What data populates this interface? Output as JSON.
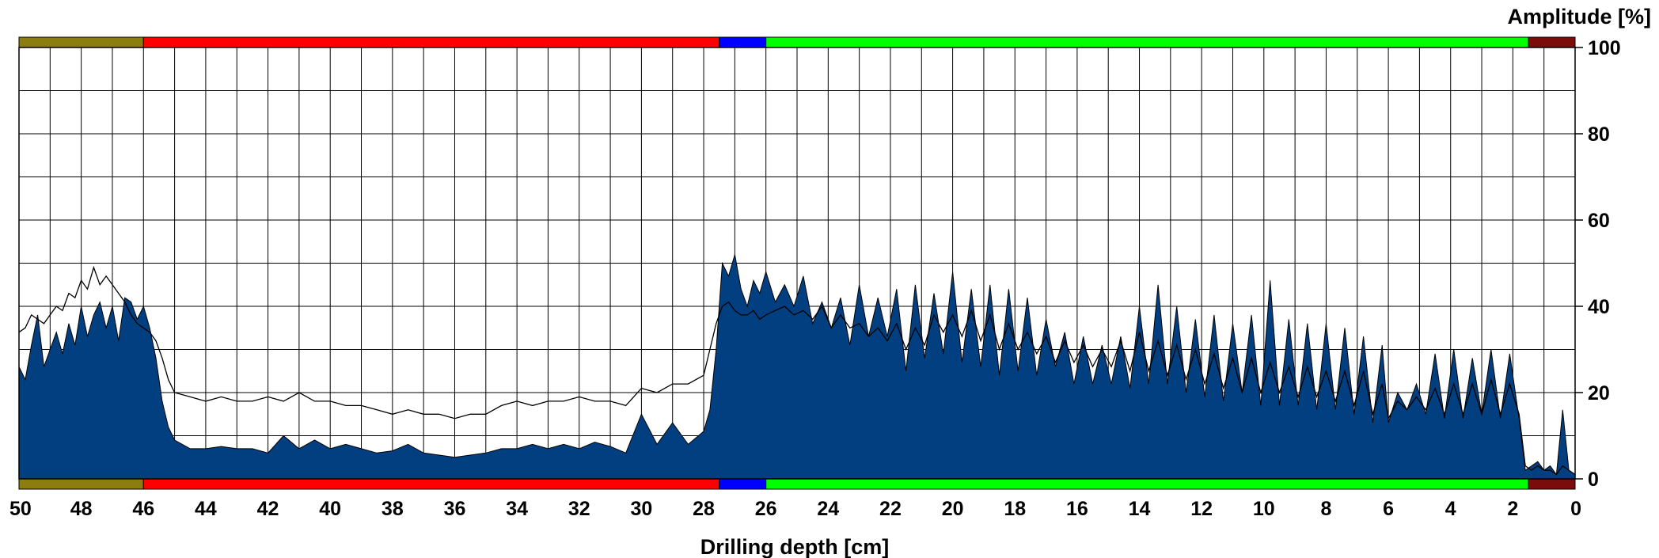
{
  "chart_data": {
    "type": "area",
    "xlabel": "Drilling depth [cm]",
    "ylabel": "Amplitude [%]",
    "xlim": [
      50,
      0
    ],
    "ylim": [
      0,
      100
    ],
    "x_axis_reversed": true,
    "grid": true,
    "x_ticks": [
      50,
      48,
      46,
      44,
      42,
      40,
      38,
      36,
      34,
      32,
      30,
      28,
      26,
      24,
      22,
      20,
      18,
      16,
      14,
      12,
      10,
      8,
      6,
      4,
      2,
      0
    ],
    "y_ticks": [
      0,
      20,
      40,
      60,
      80,
      100
    ],
    "colors": {
      "fill": "#023f80",
      "line": "#000000",
      "grid": "#000000"
    },
    "segments": [
      {
        "from": 50,
        "to": 46,
        "color": "#8b7d0e"
      },
      {
        "from": 46,
        "to": 27.5,
        "color": "#ff0000"
      },
      {
        "from": 27.5,
        "to": 26,
        "color": "#0000ff"
      },
      {
        "from": 26,
        "to": 1.5,
        "color": "#00ff00"
      },
      {
        "from": 1.5,
        "to": 0,
        "color": "#7a0c0c"
      }
    ],
    "series": [
      {
        "type": "area",
        "x": [
          50,
          49.8,
          49.6,
          49.4,
          49.2,
          49.0,
          48.8,
          48.6,
          48.4,
          48.2,
          48.0,
          47.8,
          47.6,
          47.4,
          47.2,
          47.0,
          46.8,
          46.6,
          46.4,
          46.2,
          46.0,
          45.8,
          45.6,
          45.4,
          45.2,
          45.0,
          44.5,
          44.0,
          43.5,
          43.0,
          42.5,
          42.0,
          41.5,
          41.0,
          40.5,
          40.0,
          39.5,
          39.0,
          38.5,
          38.0,
          37.5,
          37.0,
          36.5,
          36.0,
          35.5,
          35.0,
          34.5,
          34.0,
          33.5,
          33.0,
          32.5,
          32.0,
          31.5,
          31.0,
          30.5,
          30.0,
          29.5,
          29.0,
          28.5,
          28.0,
          27.8,
          27.6,
          27.4,
          27.2,
          27.0,
          26.8,
          26.6,
          26.4,
          26.2,
          26.0,
          25.7,
          25.4,
          25.1,
          24.8,
          24.5,
          24.2,
          23.9,
          23.6,
          23.3,
          23.0,
          22.7,
          22.4,
          22.1,
          21.8,
          21.5,
          21.2,
          20.9,
          20.6,
          20.3,
          20.0,
          19.7,
          19.4,
          19.1,
          18.8,
          18.5,
          18.2,
          17.9,
          17.6,
          17.3,
          17.0,
          16.7,
          16.4,
          16.1,
          15.8,
          15.5,
          15.2,
          14.9,
          14.6,
          14.3,
          14.0,
          13.7,
          13.4,
          13.1,
          12.8,
          12.5,
          12.2,
          11.9,
          11.6,
          11.3,
          11.0,
          10.7,
          10.4,
          10.1,
          9.8,
          9.5,
          9.2,
          8.9,
          8.6,
          8.3,
          8.0,
          7.7,
          7.4,
          7.1,
          6.8,
          6.5,
          6.2,
          6.0,
          5.7,
          5.4,
          5.1,
          4.8,
          4.5,
          4.2,
          3.9,
          3.6,
          3.3,
          3.0,
          2.7,
          2.4,
          2.1,
          1.8,
          1.6,
          1.4,
          1.2,
          1.0,
          0.8,
          0.6,
          0.4,
          0.2,
          0.0
        ],
        "y": [
          26,
          23,
          31,
          38,
          26,
          30,
          34,
          29,
          36,
          31,
          40,
          33,
          38,
          41,
          35,
          40,
          32,
          42,
          41,
          37,
          40,
          35,
          28,
          18,
          12,
          9,
          7,
          7,
          7.5,
          7,
          7,
          6,
          10,
          7,
          9,
          7,
          8,
          7,
          6,
          6.5,
          8,
          6,
          5.5,
          5,
          5.5,
          6,
          7,
          7,
          8,
          7,
          8,
          7,
          8.5,
          7.5,
          6,
          15,
          8,
          13,
          8,
          11,
          16,
          30,
          50,
          47,
          52,
          44,
          40,
          46,
          43,
          48,
          41,
          45,
          40,
          47,
          36,
          41,
          35,
          42,
          31,
          45,
          33,
          42,
          33,
          44,
          25,
          45,
          28,
          43,
          29,
          48,
          27,
          44,
          26,
          45,
          24,
          44,
          25,
          42,
          24,
          37,
          26,
          34,
          22,
          33,
          22,
          31,
          22,
          33,
          21,
          40,
          22,
          45,
          22,
          40,
          20,
          37,
          19,
          38,
          18,
          36,
          20,
          38,
          17,
          46,
          17,
          37,
          17,
          36,
          16,
          36,
          16,
          35,
          15,
          33,
          13,
          31,
          13,
          20,
          16,
          22,
          15,
          29,
          14,
          30,
          14,
          28,
          15,
          30,
          14,
          29,
          14,
          2,
          3,
          4,
          2,
          3,
          1,
          16,
          2,
          1
        ]
      },
      {
        "type": "line",
        "x": [
          50,
          49.8,
          49.6,
          49.4,
          49.2,
          49.0,
          48.8,
          48.6,
          48.4,
          48.2,
          48.0,
          47.8,
          47.6,
          47.4,
          47.2,
          47.0,
          46.8,
          46.6,
          46.4,
          46.2,
          46.0,
          45.8,
          45.6,
          45.4,
          45.2,
          45.0,
          44.5,
          44.0,
          43.5,
          43.0,
          42.5,
          42.0,
          41.5,
          41.0,
          40.5,
          40.0,
          39.5,
          39.0,
          38.5,
          38.0,
          37.5,
          37.0,
          36.5,
          36.0,
          35.5,
          35.0,
          34.5,
          34.0,
          33.5,
          33.0,
          32.5,
          32.0,
          31.5,
          31.0,
          30.5,
          30.0,
          29.5,
          29.0,
          28.5,
          28.0,
          27.8,
          27.6,
          27.4,
          27.2,
          27.0,
          26.8,
          26.6,
          26.4,
          26.2,
          26.0,
          25.7,
          25.4,
          25.1,
          24.8,
          24.5,
          24.2,
          23.9,
          23.6,
          23.3,
          23.0,
          22.7,
          22.4,
          22.1,
          21.8,
          21.5,
          21.2,
          20.9,
          20.6,
          20.3,
          20.0,
          19.7,
          19.4,
          19.1,
          18.8,
          18.5,
          18.2,
          17.9,
          17.6,
          17.3,
          17.0,
          16.7,
          16.4,
          16.1,
          15.8,
          15.5,
          15.2,
          14.9,
          14.6,
          14.3,
          14.0,
          13.7,
          13.4,
          13.1,
          12.8,
          12.5,
          12.2,
          11.9,
          11.6,
          11.3,
          11.0,
          10.7,
          10.4,
          10.1,
          9.8,
          9.5,
          9.2,
          8.9,
          8.6,
          8.3,
          8.0,
          7.7,
          7.4,
          7.1,
          6.8,
          6.5,
          6.2,
          6.0,
          5.7,
          5.4,
          5.1,
          4.8,
          4.5,
          4.2,
          3.9,
          3.6,
          3.3,
          3.0,
          2.7,
          2.4,
          2.1,
          1.8,
          1.6,
          1.4,
          1.2,
          1.0,
          0.8,
          0.6,
          0.4,
          0.2,
          0.0
        ],
        "y": [
          34,
          35,
          38,
          37,
          36,
          38,
          40,
          39,
          43,
          42,
          46,
          44,
          49,
          45,
          47,
          45,
          43,
          41,
          38,
          36,
          35,
          34,
          32,
          28,
          23,
          20,
          19,
          18,
          19,
          18,
          18,
          19,
          18,
          20,
          18,
          18,
          17,
          17,
          16,
          15,
          16,
          15,
          15,
          14,
          15,
          15,
          17,
          18,
          17,
          18,
          18,
          19,
          18,
          18,
          17,
          21,
          20,
          22,
          22,
          24,
          30,
          36,
          40,
          41,
          39,
          38,
          38,
          39,
          37,
          38,
          39,
          40,
          38,
          39,
          37,
          40,
          35,
          38,
          35,
          36,
          33,
          35,
          32,
          36,
          30,
          35,
          31,
          38,
          34,
          38,
          33,
          39,
          32,
          38,
          30,
          36,
          30,
          34,
          29,
          33,
          27,
          32,
          27,
          31,
          26,
          30,
          26,
          32,
          25,
          34,
          25,
          32,
          24,
          31,
          23,
          30,
          22,
          29,
          21,
          28,
          20,
          28,
          20,
          27,
          20,
          26,
          19,
          26,
          19,
          25,
          18,
          25,
          17,
          25,
          15,
          22,
          14,
          18,
          16,
          19,
          16,
          21,
          15,
          22,
          15,
          22,
          15,
          23,
          15,
          22,
          15,
          3,
          2,
          3,
          2,
          2,
          1,
          3,
          2,
          1
        ]
      }
    ]
  }
}
